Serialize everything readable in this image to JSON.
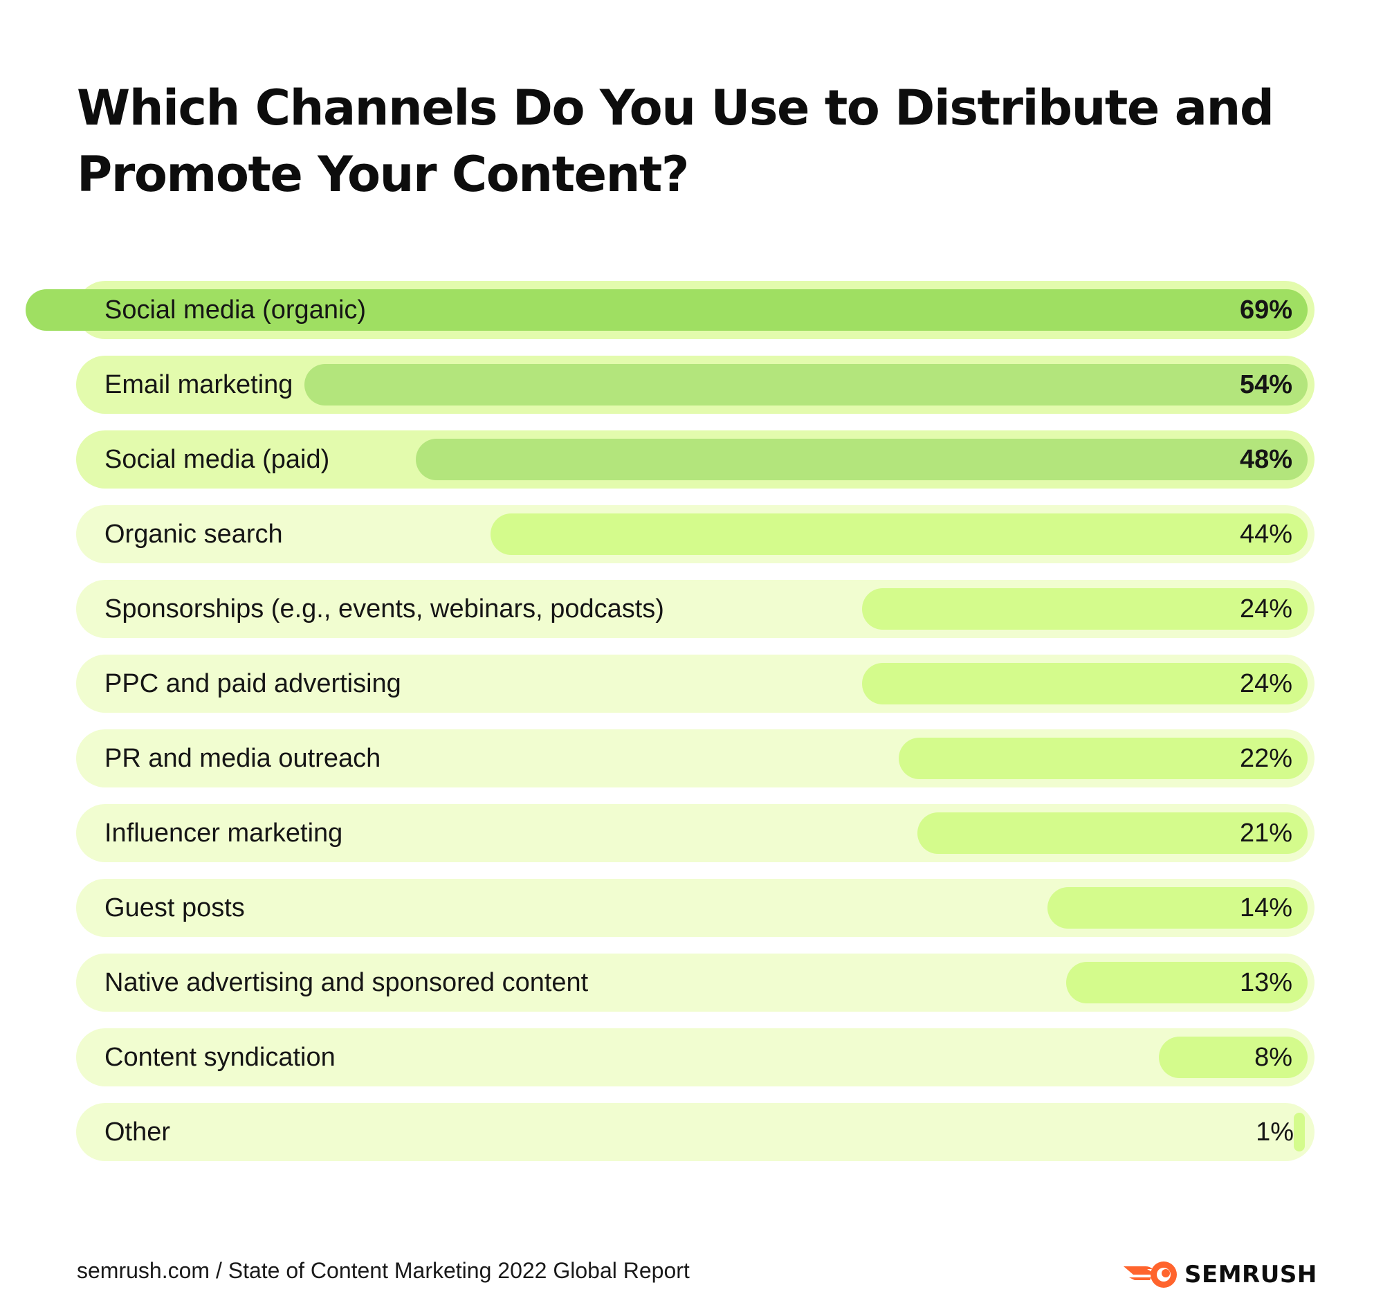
{
  "chart_data": {
    "type": "bar",
    "orientation": "horizontal",
    "title": "Which Channels Do You Use to Distribute and Promote Your Content?",
    "categories": [
      "Social media (organic)",
      "Email marketing",
      "Social media (paid)",
      "Organic search",
      "Sponsorships (e.g., events, webinars, podcasts)",
      "PPC and paid advertising",
      "PR and media outreach",
      "Influencer marketing",
      "Guest posts",
      "Native advertising and sponsored content",
      "Content syndication",
      "Other"
    ],
    "values": [
      69,
      54,
      48,
      44,
      24,
      24,
      22,
      21,
      14,
      13,
      8,
      1
    ],
    "value_labels": [
      "69%",
      "54%",
      "48%",
      "44%",
      "24%",
      "24%",
      "22%",
      "21%",
      "14%",
      "13%",
      "8%",
      "1%"
    ],
    "unit": "%",
    "xlim": [
      0,
      100
    ],
    "grid": false,
    "colors": {
      "track_light": "#f1fdd0",
      "track_highlight": "#e3fbad",
      "bar_max": "#9fdf62",
      "bar_high": "#b3e57c",
      "bar_default": "#d4fb8c"
    }
  },
  "footer": {
    "source": "semrush.com / State of Content Marketing 2022 Global Report",
    "brand": "SEMRUSH",
    "brand_icon": "semrush-fireball-icon",
    "brand_color": "#ff642d"
  }
}
